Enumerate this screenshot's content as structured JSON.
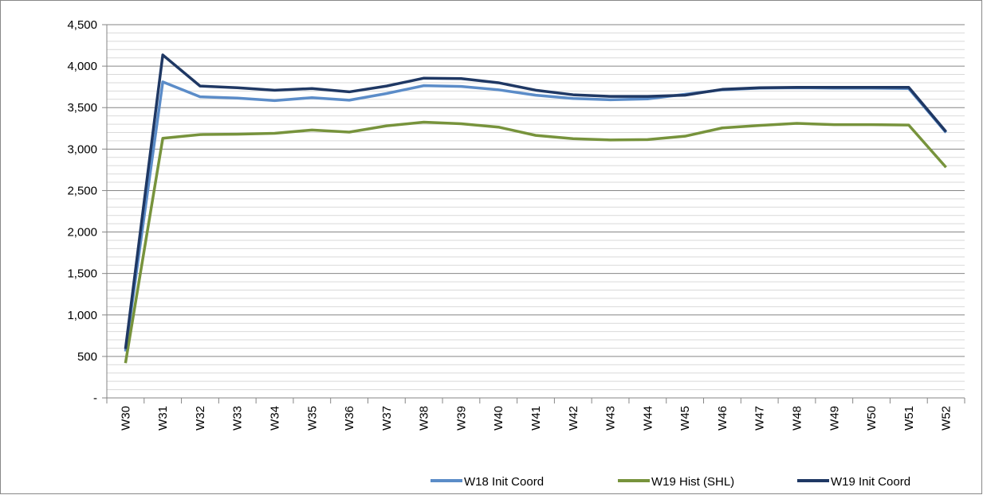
{
  "chart_data": {
    "type": "line",
    "categories": [
      "W30",
      "W31",
      "W32",
      "W33",
      "W34",
      "W35",
      "W36",
      "W37",
      "W38",
      "W39",
      "W40",
      "W41",
      "W42",
      "W43",
      "W44",
      "W45",
      "W46",
      "W47",
      "W48",
      "W49",
      "W50",
      "W51",
      "W52"
    ],
    "series": [
      {
        "name": "W18 Init Coord",
        "color": "#5b8cc8",
        "values": [
          560,
          3810,
          3630,
          3615,
          3585,
          3620,
          3590,
          3670,
          3765,
          3755,
          3715,
          3650,
          3610,
          3595,
          3605,
          3660,
          3715,
          3735,
          3740,
          3735,
          3735,
          3730,
          3200
        ]
      },
      {
        "name": "W19 Hist (SHL)",
        "color": "#77933c",
        "values": [
          420,
          3130,
          3175,
          3180,
          3190,
          3230,
          3205,
          3280,
          3325,
          3305,
          3265,
          3165,
          3125,
          3110,
          3115,
          3155,
          3255,
          3285,
          3310,
          3295,
          3295,
          3290,
          2780
        ]
      },
      {
        "name": "W19 Init Coord",
        "color": "#1f3864",
        "values": [
          590,
          4135,
          3760,
          3740,
          3710,
          3730,
          3690,
          3760,
          3855,
          3850,
          3800,
          3710,
          3655,
          3635,
          3635,
          3650,
          3720,
          3740,
          3745,
          3745,
          3745,
          3745,
          3210
        ]
      }
    ],
    "ylim": [
      0,
      4500
    ],
    "yticks": [
      {
        "value": 0,
        "label": "-"
      },
      500,
      {
        "value": 1000,
        "label": "1,000"
      },
      {
        "value": 1500,
        "label": "1,500"
      },
      {
        "value": 2000,
        "label": "2,000"
      },
      {
        "value": 2500,
        "label": "2,500"
      },
      {
        "value": 3000,
        "label": "3,000"
      },
      {
        "value": 3500,
        "label": "3,500"
      },
      {
        "value": 4000,
        "label": "4,000"
      },
      {
        "value": 4500,
        "label": "4,500"
      }
    ],
    "grid": true,
    "minor_grid_divisions": 5,
    "legend": "bottom-right"
  }
}
